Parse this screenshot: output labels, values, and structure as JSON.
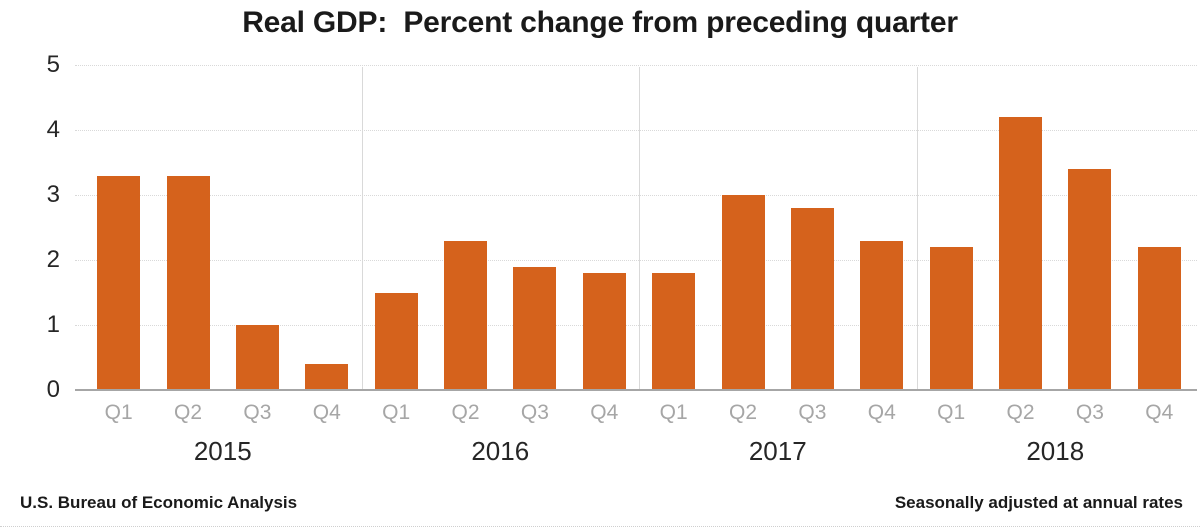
{
  "footer": {
    "left": "U.S. Bureau of Economic Analysis",
    "right": "Seasonally adjusted at annual rates"
  },
  "chart_data": {
    "type": "bar",
    "title": "Real GDP:  Percent change from preceding quarter",
    "xlabel": "",
    "ylabel": "",
    "ylim": [
      0,
      5
    ],
    "yticks": [
      5,
      4,
      3,
      2,
      1,
      0
    ],
    "grid": true,
    "legend": "none",
    "colors": {
      "bar": "#D5621C",
      "gridline": "#D9D9D9",
      "axis_line": "#A6A6A6",
      "quarter_label": "#A6A6A6",
      "year_label": "#262626",
      "tick_label": "#262626"
    },
    "groups": [
      {
        "year": "2015",
        "quarters": [
          "Q1",
          "Q2",
          "Q3",
          "Q4"
        ],
        "values": [
          3.3,
          3.3,
          1.0,
          0.4
        ]
      },
      {
        "year": "2016",
        "quarters": [
          "Q1",
          "Q2",
          "Q3",
          "Q4"
        ],
        "values": [
          1.5,
          2.3,
          1.9,
          1.8
        ]
      },
      {
        "year": "2017",
        "quarters": [
          "Q1",
          "Q2",
          "Q3",
          "Q4"
        ],
        "values": [
          1.8,
          3.0,
          2.8,
          2.3
        ]
      },
      {
        "year": "2018",
        "quarters": [
          "Q1",
          "Q2",
          "Q3",
          "Q4"
        ],
        "values": [
          2.2,
          4.2,
          3.4,
          2.2
        ]
      }
    ]
  }
}
